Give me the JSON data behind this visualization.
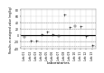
{
  "title": "",
  "xlabel": "Laboratories",
  "ylabel": "Results vs assigned value (mg/kg)",
  "xlim": [
    0.3,
    13.7
  ],
  "ylim": [
    -42,
    82
  ],
  "yticks": [
    -40,
    -20,
    0,
    20,
    40,
    60,
    80
  ],
  "ytick_labels": [
    "-40",
    "-20",
    "0",
    "20",
    "40",
    "60",
    "80"
  ],
  "xtick_labels": [
    "Lab 01",
    "Lab 02",
    "Lab 03",
    "Lab 04",
    "Lab 05",
    "Lab 06",
    "Lab 07",
    "Lab 08",
    "Lab 09",
    "Lab 10",
    "Lab 11",
    "Lab 12",
    "Lab 13"
  ],
  "mean_line": 0,
  "upper_warning": 20,
  "lower_warning": -20,
  "upper_action": 40,
  "lower_action": -35,
  "data_points": [
    {
      "lab": 1,
      "value": -5,
      "marker": "s"
    },
    {
      "lab": 2,
      "value": -18,
      "marker": "+"
    },
    {
      "lab": 3,
      "value": -18,
      "marker": "+"
    },
    {
      "lab": 4,
      "value": 2,
      "marker": "+"
    },
    {
      "lab": 5,
      "value": 10,
      "marker": "+"
    },
    {
      "lab": 6,
      "value": 2,
      "marker": "+"
    },
    {
      "lab": 7,
      "value": -2,
      "marker": "s"
    },
    {
      "lab": 8,
      "value": 65,
      "marker": "+"
    },
    {
      "lab": 9,
      "value": 25,
      "marker": "+"
    },
    {
      "lab": 10,
      "value": 28,
      "marker": "s"
    },
    {
      "lab": 11,
      "value": 28,
      "marker": "+"
    },
    {
      "lab": 12,
      "value": -2,
      "marker": "+"
    },
    {
      "lab": 13,
      "value": -30,
      "marker": "+"
    }
  ],
  "marker_color": "#333333",
  "line_color": "#000000",
  "warning_color": "#aaaaaa",
  "background_color": "#ffffff",
  "grid_color": "#cccccc",
  "mean_linewidth": 0.8,
  "warning_linewidth": 0.5,
  "marker_size": 1.8,
  "fontsize_ylabel": 2.2,
  "fontsize_xlabel": 3.0,
  "fontsize_ticks": 2.2
}
